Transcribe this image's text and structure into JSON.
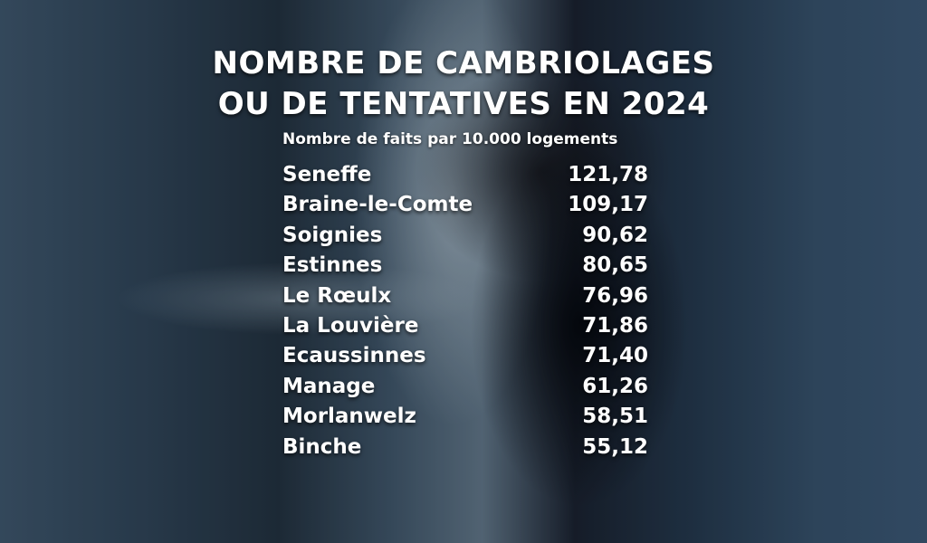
{
  "chart_data": {
    "type": "table",
    "title": "NOMBRE DE CAMBRIOLAGES OU DE TENTATIVES EN 2024",
    "title_lines": [
      "NOMBRE DE CAMBRIOLAGES",
      "OU DE TENTATIVES EN 2024"
    ],
    "subtitle": "Nombre de faits par 10.000 logements",
    "rows": [
      {
        "name": "Seneffe",
        "value": "121,78"
      },
      {
        "name": "Braine-le-Comte",
        "value": "109,17"
      },
      {
        "name": "Soignies",
        "value": "90,62"
      },
      {
        "name": "Estinnes",
        "value": "80,65"
      },
      {
        "name": "Le Rœulx",
        "value": "76,96"
      },
      {
        "name": "La Louvière",
        "value": "71,86"
      },
      {
        "name": "Ecaussinnes",
        "value": "71,40"
      },
      {
        "name": "Manage",
        "value": "61,26"
      },
      {
        "name": "Morlanwelz",
        "value": "58,51"
      },
      {
        "name": "Binche",
        "value": "55,12"
      }
    ],
    "text_color": "#ffffff"
  }
}
